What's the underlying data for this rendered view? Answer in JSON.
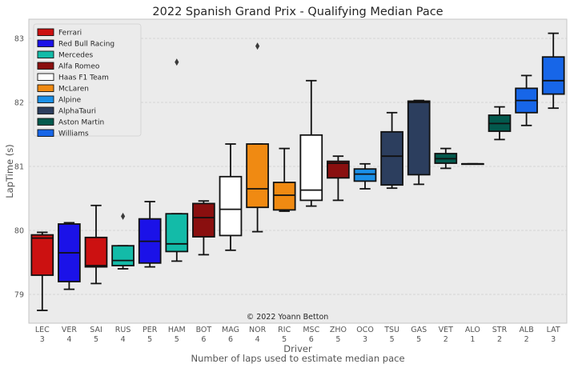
{
  "chart_data": {
    "type": "box",
    "title": "2022 Spanish Grand Prix - Qualifying Median Pace",
    "ylabel": "LapTime (s)",
    "xlabel": "Driver",
    "xlabel2": "Number of laps used to estimate median pace",
    "ylim": [
      78.55,
      83.3
    ],
    "yticks": [
      79,
      80,
      81,
      82,
      83
    ],
    "grid": true,
    "legend_position": "top-left",
    "watermark": "© 2022 Yoann Betton",
    "teams": [
      {
        "name": "Ferrari",
        "color": "#cc1111"
      },
      {
        "name": "Red Bull Racing",
        "color": "#1b12e8"
      },
      {
        "name": "Mercedes",
        "color": "#13bba8"
      },
      {
        "name": "Alfa Romeo",
        "color": "#8a0f0f"
      },
      {
        "name": "Haas F1 Team",
        "color": "#ffffff"
      },
      {
        "name": "McLaren",
        "color": "#f08a12"
      },
      {
        "name": "Alpine",
        "color": "#1a90e8"
      },
      {
        "name": "AlphaTauri",
        "color": "#2c3e5e"
      },
      {
        "name": "Aston Martin",
        "color": "#03594d"
      },
      {
        "name": "Williams",
        "color": "#1766e8"
      }
    ],
    "drivers": [
      {
        "code": "LEC",
        "laps": "3",
        "team": 0,
        "whislo": 78.75,
        "q1": 79.3,
        "med": 79.88,
        "q3": 79.93,
        "whishi": 79.97,
        "fliers": []
      },
      {
        "code": "VER",
        "laps": "4",
        "team": 1,
        "whislo": 79.08,
        "q1": 79.2,
        "med": 79.65,
        "q3": 80.1,
        "whishi": 80.12,
        "fliers": []
      },
      {
        "code": "SAI",
        "laps": "5",
        "team": 0,
        "whislo": 79.17,
        "q1": 79.43,
        "med": 79.45,
        "q3": 79.89,
        "whishi": 80.39,
        "fliers": []
      },
      {
        "code": "RUS",
        "laps": "4",
        "team": 2,
        "whislo": 79.4,
        "q1": 79.45,
        "med": 79.53,
        "q3": 79.76,
        "whishi": 79.76,
        "fliers": [
          80.22
        ]
      },
      {
        "code": "PER",
        "laps": "5",
        "team": 1,
        "whislo": 79.43,
        "q1": 79.49,
        "med": 79.83,
        "q3": 80.18,
        "whishi": 80.45,
        "fliers": []
      },
      {
        "code": "HAM",
        "laps": "5",
        "team": 2,
        "whislo": 79.52,
        "q1": 79.67,
        "med": 79.79,
        "q3": 80.26,
        "whishi": 80.26,
        "fliers": [
          82.63
        ]
      },
      {
        "code": "BOT",
        "laps": "6",
        "team": 3,
        "whislo": 79.62,
        "q1": 79.9,
        "med": 80.2,
        "q3": 80.42,
        "whishi": 80.46,
        "fliers": []
      },
      {
        "code": "MAG",
        "laps": "6",
        "team": 4,
        "whislo": 79.69,
        "q1": 79.92,
        "med": 80.33,
        "q3": 80.84,
        "whishi": 81.35,
        "fliers": []
      },
      {
        "code": "NOR",
        "laps": "4",
        "team": 5,
        "whislo": 79.98,
        "q1": 80.36,
        "med": 80.65,
        "q3": 81.35,
        "whishi": 81.35,
        "fliers": [
          82.88
        ]
      },
      {
        "code": "RIC",
        "laps": "5",
        "team": 5,
        "whislo": 80.3,
        "q1": 80.32,
        "med": 80.55,
        "q3": 80.75,
        "whishi": 81.28,
        "fliers": []
      },
      {
        "code": "MSC",
        "laps": "6",
        "team": 4,
        "whislo": 80.38,
        "q1": 80.47,
        "med": 80.63,
        "q3": 81.49,
        "whishi": 82.34,
        "fliers": []
      },
      {
        "code": "ZHO",
        "laps": "5",
        "team": 3,
        "whislo": 80.47,
        "q1": 80.82,
        "med": 81.05,
        "q3": 81.08,
        "whishi": 81.16,
        "fliers": []
      },
      {
        "code": "OCO",
        "laps": "3",
        "team": 6,
        "whislo": 80.65,
        "q1": 80.77,
        "med": 80.88,
        "q3": 80.96,
        "whishi": 81.04,
        "fliers": []
      },
      {
        "code": "TSU",
        "laps": "5",
        "team": 7,
        "whislo": 80.66,
        "q1": 80.71,
        "med": 81.16,
        "q3": 81.54,
        "whishi": 81.84,
        "fliers": []
      },
      {
        "code": "GAS",
        "laps": "5",
        "team": 7,
        "whislo": 80.72,
        "q1": 80.87,
        "med": 82.0,
        "q3": 82.02,
        "whishi": 82.03,
        "fliers": []
      },
      {
        "code": "VET",
        "laps": "2",
        "team": 8,
        "whislo": 80.97,
        "q1": 81.05,
        "med": 81.12,
        "q3": 81.2,
        "whishi": 81.28,
        "fliers": []
      },
      {
        "code": "ALO",
        "laps": "1",
        "team": 6,
        "whislo": 81.04,
        "q1": 81.04,
        "med": 81.04,
        "q3": 81.04,
        "whishi": 81.04,
        "fliers": []
      },
      {
        "code": "STR",
        "laps": "2",
        "team": 8,
        "whislo": 81.42,
        "q1": 81.55,
        "med": 81.67,
        "q3": 81.8,
        "whishi": 81.93,
        "fliers": []
      },
      {
        "code": "ALB",
        "laps": "2",
        "team": 9,
        "whislo": 81.64,
        "q1": 81.84,
        "med": 82.03,
        "q3": 82.22,
        "whishi": 82.42,
        "fliers": []
      },
      {
        "code": "LAT",
        "laps": "3",
        "team": 9,
        "whislo": 81.91,
        "q1": 82.13,
        "med": 82.34,
        "q3": 82.71,
        "whishi": 83.08,
        "fliers": []
      }
    ]
  }
}
